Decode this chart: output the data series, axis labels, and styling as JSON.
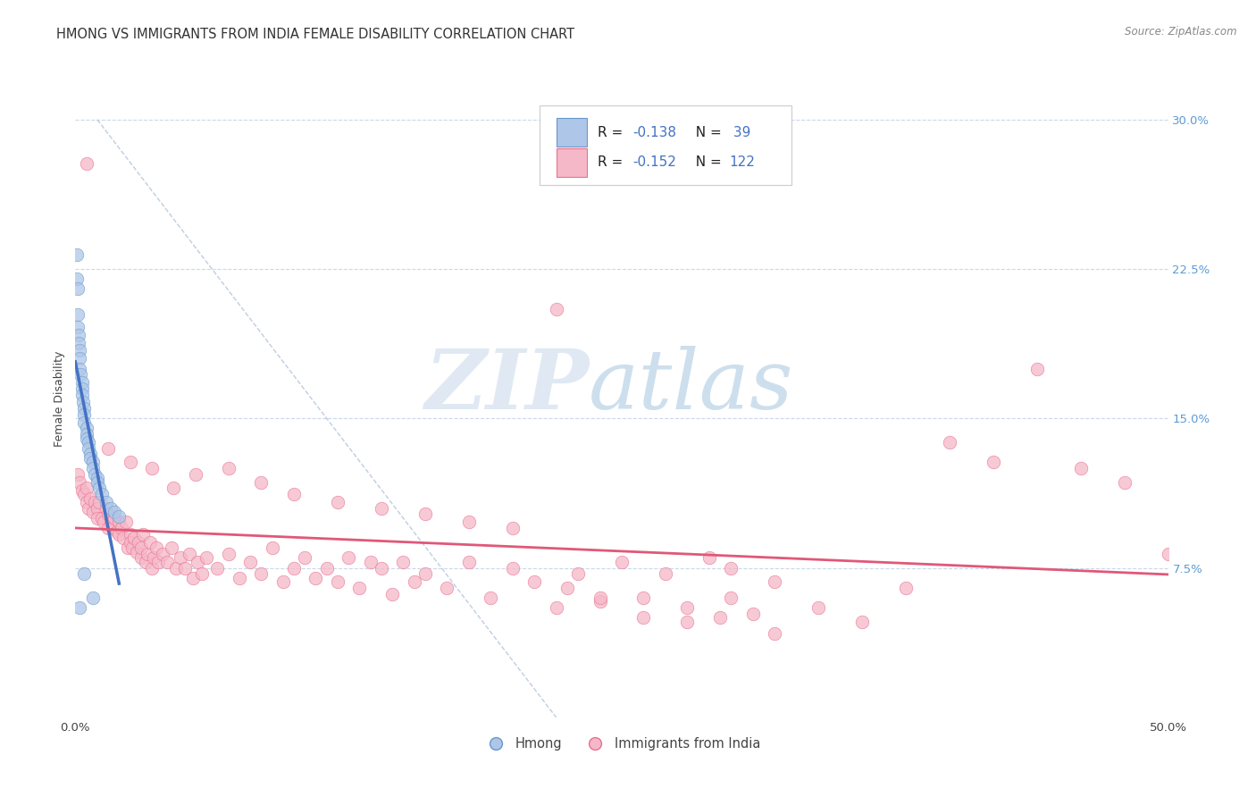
{
  "title": "HMONG VS IMMIGRANTS FROM INDIA FEMALE DISABILITY CORRELATION CHART",
  "source": "Source: ZipAtlas.com",
  "ylabel": "Female Disability",
  "xlim": [
    0.0,
    0.5
  ],
  "ylim": [
    0.0,
    0.32
  ],
  "x_tick_positions": [
    0.0,
    0.1,
    0.2,
    0.3,
    0.4,
    0.5
  ],
  "x_tick_labels": [
    "0.0%",
    "",
    "",
    "",
    "",
    "50.0%"
  ],
  "y_ticks_right": [
    0.075,
    0.15,
    0.225,
    0.3
  ],
  "y_tick_labels_right": [
    "7.5%",
    "15.0%",
    "22.5%",
    "30.0%"
  ],
  "legend_label1": "Hmong",
  "legend_label2": "Immigrants from India",
  "color_hmong_fill": "#aec6e8",
  "color_india_fill": "#f5b8c8",
  "color_hmong_edge": "#6699cc",
  "color_india_edge": "#e87090",
  "color_hmong_line": "#4472c4",
  "color_india_line": "#e05878",
  "color_diag_line": "#b8c8dc",
  "watermark_zip": "ZIP",
  "watermark_atlas": "atlas",
  "background_color": "#ffffff",
  "grid_color": "#c8d8ec",
  "title_fontsize": 10.5,
  "axis_label_fontsize": 9,
  "tick_fontsize": 9.5,
  "hmong_x": [
    0.0005,
    0.0008,
    0.001,
    0.001,
    0.0012,
    0.0015,
    0.0015,
    0.002,
    0.002,
    0.002,
    0.0025,
    0.003,
    0.003,
    0.003,
    0.0035,
    0.004,
    0.004,
    0.004,
    0.005,
    0.005,
    0.005,
    0.006,
    0.006,
    0.007,
    0.007,
    0.008,
    0.008,
    0.009,
    0.01,
    0.01,
    0.011,
    0.012,
    0.014,
    0.016,
    0.018,
    0.02,
    0.008,
    0.004,
    0.002
  ],
  "hmong_y": [
    0.232,
    0.22,
    0.215,
    0.202,
    0.196,
    0.192,
    0.188,
    0.184,
    0.18,
    0.175,
    0.172,
    0.168,
    0.165,
    0.162,
    0.158,
    0.155,
    0.152,
    0.148,
    0.145,
    0.142,
    0.14,
    0.138,
    0.135,
    0.132,
    0.13,
    0.128,
    0.125,
    0.122,
    0.12,
    0.118,
    0.115,
    0.112,
    0.108,
    0.105,
    0.103,
    0.101,
    0.06,
    0.072,
    0.055
  ],
  "india_x": [
    0.001,
    0.002,
    0.003,
    0.004,
    0.005,
    0.005,
    0.006,
    0.007,
    0.008,
    0.009,
    0.01,
    0.01,
    0.011,
    0.012,
    0.013,
    0.014,
    0.015,
    0.015,
    0.016,
    0.017,
    0.018,
    0.019,
    0.02,
    0.02,
    0.021,
    0.022,
    0.023,
    0.024,
    0.025,
    0.025,
    0.026,
    0.027,
    0.028,
    0.029,
    0.03,
    0.03,
    0.031,
    0.032,
    0.033,
    0.034,
    0.035,
    0.036,
    0.037,
    0.038,
    0.04,
    0.042,
    0.044,
    0.046,
    0.048,
    0.05,
    0.052,
    0.054,
    0.056,
    0.058,
    0.06,
    0.065,
    0.07,
    0.075,
    0.08,
    0.085,
    0.09,
    0.095,
    0.1,
    0.105,
    0.11,
    0.115,
    0.12,
    0.125,
    0.13,
    0.135,
    0.14,
    0.145,
    0.15,
    0.155,
    0.16,
    0.17,
    0.18,
    0.19,
    0.2,
    0.21,
    0.22,
    0.225,
    0.23,
    0.24,
    0.25,
    0.26,
    0.27,
    0.28,
    0.29,
    0.295,
    0.3,
    0.31,
    0.005,
    0.32,
    0.38,
    0.4,
    0.42,
    0.44,
    0.46,
    0.48,
    0.5,
    0.015,
    0.025,
    0.035,
    0.045,
    0.055,
    0.07,
    0.085,
    0.1,
    0.12,
    0.14,
    0.16,
    0.18,
    0.2,
    0.22,
    0.24,
    0.26,
    0.28,
    0.3,
    0.32,
    0.34,
    0.36
  ],
  "india_y": [
    0.122,
    0.118,
    0.114,
    0.112,
    0.115,
    0.108,
    0.105,
    0.11,
    0.103,
    0.108,
    0.105,
    0.1,
    0.108,
    0.1,
    0.098,
    0.105,
    0.095,
    0.102,
    0.098,
    0.095,
    0.1,
    0.093,
    0.098,
    0.092,
    0.095,
    0.09,
    0.098,
    0.085,
    0.092,
    0.088,
    0.085,
    0.09,
    0.083,
    0.088,
    0.08,
    0.085,
    0.092,
    0.078,
    0.082,
    0.088,
    0.075,
    0.08,
    0.085,
    0.078,
    0.082,
    0.078,
    0.085,
    0.075,
    0.08,
    0.075,
    0.082,
    0.07,
    0.078,
    0.072,
    0.08,
    0.075,
    0.082,
    0.07,
    0.078,
    0.072,
    0.085,
    0.068,
    0.075,
    0.08,
    0.07,
    0.075,
    0.068,
    0.08,
    0.065,
    0.078,
    0.075,
    0.062,
    0.078,
    0.068,
    0.072,
    0.065,
    0.078,
    0.06,
    0.075,
    0.068,
    0.205,
    0.065,
    0.072,
    0.058,
    0.078,
    0.06,
    0.072,
    0.055,
    0.08,
    0.05,
    0.075,
    0.052,
    0.278,
    0.068,
    0.065,
    0.138,
    0.128,
    0.175,
    0.125,
    0.118,
    0.082,
    0.135,
    0.128,
    0.125,
    0.115,
    0.122,
    0.125,
    0.118,
    0.112,
    0.108,
    0.105,
    0.102,
    0.098,
    0.095,
    0.055,
    0.06,
    0.05,
    0.048,
    0.06,
    0.042,
    0.055,
    0.048
  ]
}
